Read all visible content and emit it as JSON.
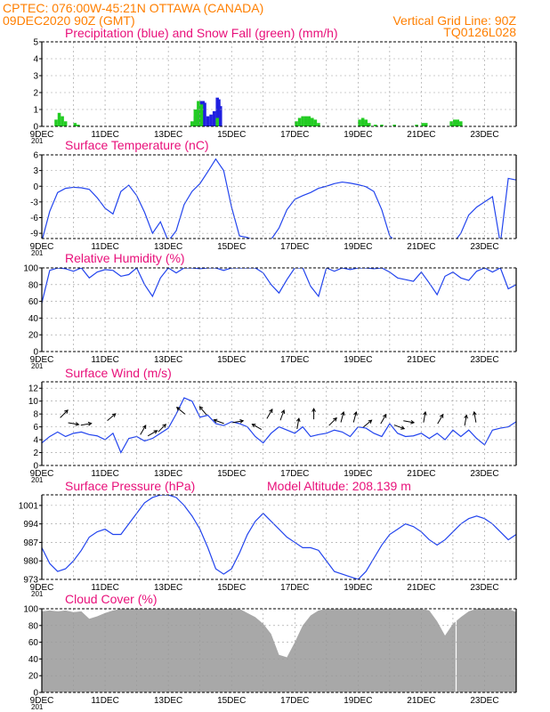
{
  "header": {
    "line1": "CPTEC:  076:00W-45:21N  OTTAWA (CANADA)",
    "line2_left": "09DEC2020 90Z (GMT)",
    "line2_right": "Vertical Grid Line: 90Z",
    "code": "TQ0126L028",
    "x_stub": "201"
  },
  "x_ticks": [
    "9DEC",
    "11DEC",
    "13DEC",
    "15DEC",
    "17DEC",
    "19DEC",
    "21DEC",
    "23DEC"
  ],
  "colors": {
    "precip": "#1f1fe0",
    "snow": "#22cc22",
    "line": "#2244ee",
    "title": "#e8107a",
    "header": "#ff7f00",
    "cloud": "#a8a8a8",
    "grid": "#999999"
  },
  "chart_data": [
    {
      "type": "bar",
      "title": "Precipitation (blue) and Snow Fall (green) (mm/h)",
      "ylim": [
        0,
        5
      ],
      "yticks": [
        0,
        1,
        2,
        3,
        4,
        5
      ],
      "series": [
        {
          "name": "Precipitation",
          "color": "#1f1fe0",
          "points": [
            [
              4.85,
              0.6
            ],
            [
              4.95,
              1.0
            ],
            [
              5.0,
              1.2
            ],
            [
              5.05,
              1.5
            ],
            [
              5.1,
              1.5
            ],
            [
              5.15,
              1.4
            ],
            [
              5.25,
              0.6
            ],
            [
              5.35,
              0.7
            ],
            [
              5.45,
              0.9
            ],
            [
              5.55,
              1.7
            ],
            [
              5.6,
              1.6
            ],
            [
              5.65,
              1.2
            ]
          ]
        },
        {
          "name": "Snow Fall",
          "color": "#22cc22",
          "points": [
            [
              0.45,
              0.4
            ],
            [
              0.55,
              0.8
            ],
            [
              0.65,
              0.6
            ],
            [
              0.75,
              0.3
            ],
            [
              1.05,
              0.2
            ],
            [
              1.15,
              0.1
            ],
            [
              4.75,
              0.3
            ],
            [
              4.85,
              1.0
            ],
            [
              4.95,
              1.5
            ],
            [
              5.05,
              1.3
            ],
            [
              5.55,
              0.5
            ],
            [
              8.05,
              0.3
            ],
            [
              8.15,
              0.5
            ],
            [
              8.25,
              0.6
            ],
            [
              8.35,
              0.6
            ],
            [
              8.45,
              0.6
            ],
            [
              8.55,
              0.5
            ],
            [
              8.65,
              0.4
            ],
            [
              8.75,
              0.2
            ],
            [
              10.05,
              0.4
            ],
            [
              10.15,
              0.5
            ],
            [
              10.25,
              0.4
            ],
            [
              10.35,
              0.2
            ],
            [
              10.55,
              0.1
            ],
            [
              10.75,
              0.1
            ],
            [
              11.15,
              0.1
            ],
            [
              11.85,
              0.1
            ],
            [
              12.05,
              0.2
            ],
            [
              12.15,
              0.2
            ],
            [
              12.95,
              0.3
            ],
            [
              13.05,
              0.4
            ],
            [
              13.15,
              0.4
            ],
            [
              13.25,
              0.3
            ]
          ]
        }
      ]
    },
    {
      "type": "line",
      "title": "Surface Temperature (nC)",
      "ylim": [
        -10,
        6
      ],
      "yticks": [
        -9,
        -6,
        -3,
        0,
        3,
        6
      ],
      "x": [
        0,
        0.25,
        0.5,
        0.75,
        1,
        1.25,
        1.5,
        1.75,
        2,
        2.25,
        2.5,
        2.75,
        3,
        3.25,
        3.5,
        3.75,
        4,
        4.25,
        4.5,
        4.75,
        5,
        5.25,
        5.5,
        5.75,
        6,
        6.25,
        6.5,
        6.75,
        7,
        7.25,
        7.5,
        7.75,
        8,
        8.25,
        8.5,
        8.75,
        9,
        9.25,
        9.5,
        9.75,
        10,
        10.25,
        10.5,
        10.75,
        11,
        11.25,
        11.5,
        11.75,
        12,
        12.25,
        12.5,
        12.75,
        13,
        13.25,
        13.5,
        13.75,
        14,
        14.25,
        14.5,
        14.75,
        15
      ],
      "y": [
        -10.5,
        -4.8,
        -1.2,
        -0.4,
        -0.2,
        -0.3,
        -0.6,
        -2.2,
        -4.2,
        -5.3,
        -1.0,
        0.2,
        -1.8,
        -5.0,
        -9.0,
        -6.8,
        -10.5,
        -8.5,
        -3.5,
        -1.0,
        0.5,
        2.8,
        5.2,
        3.0,
        -4.0,
        -9.5,
        -9.8,
        -10.5,
        -11.0,
        -10.2,
        -8.0,
        -4.5,
        -2.5,
        -1.8,
        -1.2,
        -0.4,
        0.0,
        0.5,
        0.8,
        0.6,
        0.3,
        -0.1,
        -1.0,
        -4.5,
        -9.5,
        -11.0,
        -11.0,
        -12.0,
        -12.0,
        -11.0,
        -11.0,
        -10.5,
        -11.0,
        -9.0,
        -5.5,
        -4.0,
        -3.0,
        -2.0,
        -11.0,
        1.5,
        1.2
      ]
    },
    {
      "type": "line",
      "title": "Relative Humidity (%)",
      "ylim": [
        0,
        100
      ],
      "yticks": [
        0,
        20,
        40,
        60,
        80,
        100
      ],
      "x": [
        0,
        0.25,
        0.5,
        0.75,
        1,
        1.25,
        1.5,
        1.75,
        2,
        2.25,
        2.5,
        2.75,
        3,
        3.25,
        3.5,
        3.75,
        4,
        4.25,
        4.5,
        4.75,
        5,
        5.25,
        5.5,
        5.75,
        6,
        6.25,
        6.5,
        6.75,
        7,
        7.25,
        7.5,
        7.75,
        8,
        8.25,
        8.5,
        8.75,
        9,
        9.25,
        9.5,
        9.75,
        10,
        10.25,
        10.5,
        10.75,
        11,
        11.25,
        11.5,
        11.75,
        12,
        12.25,
        12.5,
        12.75,
        13,
        13.25,
        13.5,
        13.75,
        14,
        14.25,
        14.5,
        14.75,
        15
      ],
      "y": [
        58,
        97,
        100,
        99,
        96,
        100,
        88,
        95,
        98,
        97,
        90,
        92,
        100,
        80,
        66,
        88,
        100,
        94,
        100,
        100,
        99,
        100,
        100,
        97,
        100,
        100,
        100,
        100,
        94,
        80,
        70,
        86,
        100,
        100,
        78,
        66,
        100,
        96,
        100,
        98,
        100,
        100,
        99,
        100,
        95,
        88,
        86,
        84,
        95,
        82,
        68,
        90,
        95,
        88,
        85,
        96,
        100,
        95,
        100,
        75,
        80
      ]
    },
    {
      "type": "line",
      "title": "Surface Wind (m/s)",
      "ylim": [
        0,
        13
      ],
      "yticks": [
        0,
        2,
        4,
        6,
        8,
        10,
        12
      ],
      "x": [
        0,
        0.25,
        0.5,
        0.75,
        1,
        1.25,
        1.5,
        1.75,
        2,
        2.25,
        2.5,
        2.75,
        3,
        3.25,
        3.5,
        3.75,
        4,
        4.25,
        4.5,
        4.75,
        5,
        5.25,
        5.5,
        5.75,
        6,
        6.25,
        6.5,
        6.75,
        7,
        7.25,
        7.5,
        7.75,
        8,
        8.25,
        8.5,
        8.75,
        9,
        9.25,
        9.5,
        9.75,
        10,
        10.25,
        10.5,
        10.75,
        11,
        11.25,
        11.5,
        11.75,
        12,
        12.25,
        12.5,
        12.75,
        13,
        13.25,
        13.5,
        13.75,
        14,
        14.25,
        14.5,
        14.75,
        15
      ],
      "y": [
        3.5,
        4.5,
        5.2,
        4.5,
        5.0,
        5.2,
        4.8,
        4.6,
        4.0,
        5.0,
        2.0,
        4.2,
        4.5,
        3.8,
        4.2,
        5.0,
        5.8,
        8.0,
        10.5,
        10.0,
        7.5,
        7.8,
        6.5,
        6.2,
        6.8,
        6.5,
        6.0,
        4.5,
        3.5,
        5.0,
        6.0,
        5.5,
        5.0,
        6.0,
        4.5,
        4.8,
        5.0,
        5.5,
        5.2,
        4.5,
        6.0,
        5.8,
        5.0,
        4.5,
        6.5,
        5.0,
        4.5,
        4.6,
        5.0,
        4.2,
        5.0,
        4.0,
        5.5,
        4.5,
        5.5,
        4.2,
        3.2,
        5.5,
        5.8,
        6.0,
        6.8
      ],
      "arrows": [
        [
          0.7,
          8.0,
          45
        ],
        [
          1.0,
          6.5,
          -10
        ],
        [
          1.4,
          6.4,
          10
        ],
        [
          2.2,
          7.5,
          40
        ],
        [
          3.2,
          5.5,
          60
        ],
        [
          3.5,
          5.0,
          30
        ],
        [
          3.8,
          5.8,
          45
        ],
        [
          4.4,
          8.5,
          140
        ],
        [
          5.1,
          8.5,
          130
        ],
        [
          5.6,
          6.8,
          160
        ],
        [
          6.2,
          6.8,
          10
        ],
        [
          6.8,
          6.0,
          150
        ],
        [
          7.2,
          8.0,
          60
        ],
        [
          7.6,
          7.8,
          70
        ],
        [
          8.1,
          6.5,
          80
        ],
        [
          8.6,
          8.0,
          90
        ],
        [
          9.2,
          6.8,
          45
        ],
        [
          9.5,
          7.5,
          75
        ],
        [
          9.9,
          7.5,
          75
        ],
        [
          10.3,
          6.5,
          40
        ],
        [
          10.8,
          7.2,
          60
        ],
        [
          11.3,
          6.0,
          -20
        ],
        [
          11.6,
          6.8,
          -10
        ],
        [
          12.1,
          7.5,
          80
        ],
        [
          12.6,
          7.2,
          60
        ],
        [
          13.4,
          7.0,
          80
        ],
        [
          13.7,
          7.5,
          100
        ]
      ]
    },
    {
      "type": "line",
      "title": "Surface Pressure (hPa)",
      "annotation": "Model Altitude: 208.139  m",
      "ylim": [
        973,
        1005
      ],
      "yticks": [
        973,
        980,
        987,
        994,
        1001
      ],
      "x": [
        0,
        0.25,
        0.5,
        0.75,
        1,
        1.25,
        1.5,
        1.75,
        2,
        2.25,
        2.5,
        2.75,
        3,
        3.25,
        3.5,
        3.75,
        4,
        4.25,
        4.5,
        4.75,
        5,
        5.25,
        5.5,
        5.75,
        6,
        6.25,
        6.5,
        6.75,
        7,
        7.25,
        7.5,
        7.75,
        8,
        8.25,
        8.5,
        8.75,
        9,
        9.25,
        9.5,
        9.75,
        10,
        10.25,
        10.5,
        10.75,
        11,
        11.25,
        11.5,
        11.75,
        12,
        12.25,
        12.5,
        12.75,
        13,
        13.25,
        13.5,
        13.75,
        14,
        14.25,
        14.5,
        14.75,
        15
      ],
      "y": [
        985,
        979,
        976,
        977,
        980,
        984,
        989,
        991,
        992,
        990,
        990,
        994,
        998,
        1002,
        1004,
        1005,
        1005,
        1004,
        1001,
        997,
        992,
        985,
        977,
        975,
        977,
        983,
        990,
        995,
        998,
        995,
        992,
        989,
        987,
        985,
        985,
        984,
        980,
        976,
        975,
        974,
        973,
        976,
        981,
        986,
        990,
        992,
        994,
        993,
        991,
        988,
        986,
        988,
        991,
        994,
        996,
        997,
        996,
        994,
        991,
        988,
        990
      ]
    },
    {
      "type": "area",
      "title": "Cloud Cover (%)",
      "ylim": [
        0,
        100
      ],
      "yticks": [
        0,
        20,
        40,
        60,
        80,
        100
      ],
      "x": [
        0,
        0.25,
        0.5,
        0.75,
        1,
        1.25,
        1.5,
        1.75,
        2,
        2.25,
        2.5,
        2.75,
        3,
        3.25,
        3.5,
        3.75,
        4,
        4.25,
        4.5,
        4.75,
        5,
        5.25,
        5.5,
        5.75,
        6,
        6.25,
        6.5,
        6.75,
        7,
        7.25,
        7.5,
        7.75,
        8,
        8.25,
        8.5,
        8.75,
        9,
        9.25,
        9.5,
        9.75,
        10,
        10.25,
        10.5,
        10.75,
        11,
        11.25,
        11.5,
        11.75,
        12,
        12.25,
        12.5,
        12.75,
        13,
        13.25,
        13.5,
        13.75,
        14,
        14.25,
        14.5,
        14.75,
        15
      ],
      "y": [
        97,
        98,
        97,
        98,
        96,
        97,
        88,
        91,
        95,
        98,
        100,
        100,
        100,
        100,
        100,
        100,
        100,
        100,
        100,
        100,
        100,
        100,
        100,
        100,
        100,
        100,
        95,
        90,
        82,
        70,
        45,
        42,
        60,
        80,
        92,
        98,
        100,
        100,
        100,
        100,
        100,
        100,
        100,
        100,
        100,
        100,
        100,
        100,
        100,
        98,
        85,
        68,
        82,
        90,
        97,
        100,
        100,
        100,
        100,
        100,
        96
      ]
    }
  ]
}
